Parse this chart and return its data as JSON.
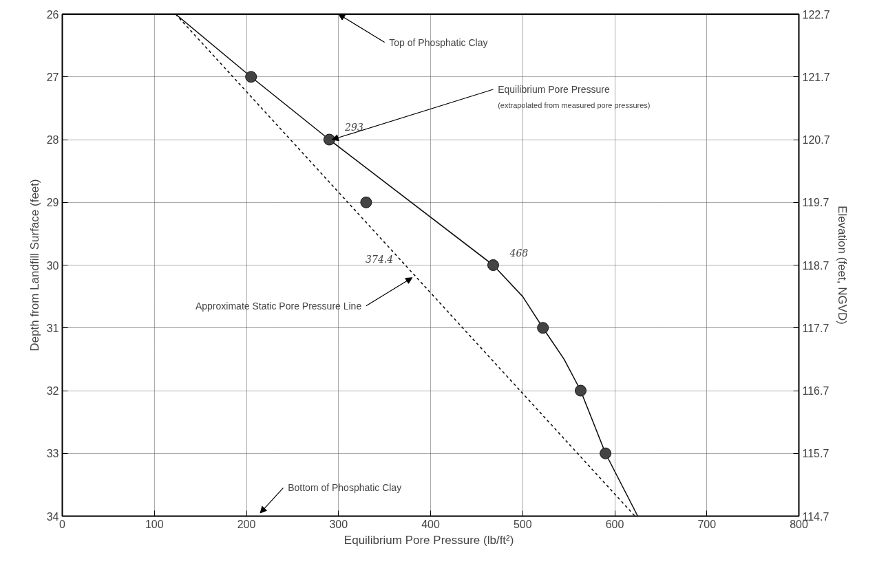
{
  "chart_data": {
    "type": "line",
    "xlabel": "Equilibrium Pore Pressure  (lb/ft²)",
    "ylabel": "Depth from Landfill Surface (feet)",
    "y2label": "Elevation (feet, NGVD)",
    "xlim": [
      0,
      800
    ],
    "xticks": [
      0,
      100,
      200,
      300,
      400,
      500,
      600,
      700,
      800
    ],
    "ylim": [
      34,
      26
    ],
    "yticks": [
      26,
      27,
      28,
      29,
      30,
      31,
      32,
      33,
      34
    ],
    "y2lim": [
      114.7,
      122.7
    ],
    "y2ticks": [
      114.7,
      115.7,
      116.7,
      117.7,
      118.7,
      119.7,
      120.7,
      121.7,
      122.7
    ],
    "grid": true,
    "series": [
      {
        "color": "#111111",
        "line_style": "solid",
        "x": [
          123,
          205,
          290,
          468,
          500,
          522,
          545,
          563,
          590,
          625
        ],
        "values": [
          26,
          27,
          28,
          30,
          30.5,
          31,
          31.5,
          32,
          33,
          34
        ]
      },
      {
        "color": "#111111",
        "line_style": "dashed",
        "x": [
          123,
          622
        ],
        "values": [
          26,
          34
        ]
      },
      {
        "type": "scatter",
        "color": "#444444",
        "marker": "circle",
        "x": [
          205,
          290,
          330,
          468,
          522,
          563,
          590
        ],
        "values": [
          27,
          28,
          29,
          30,
          31,
          32,
          33
        ]
      }
    ],
    "ref_lines": [
      {
        "axis": "y",
        "value": 26,
        "label": "Top of Phosphatic Clay",
        "color": "#111111"
      }
    ],
    "annotations": [
      {
        "text": "Equilibrium Pore Pressure\n(extrapolated from measured pore pressures)",
        "x": 293,
        "y": 28
      },
      {
        "text": "293",
        "x": 293,
        "y": 28
      },
      {
        "text": "468",
        "x": 468,
        "y": 30
      },
      {
        "text": "374.4",
        "x": 374.4,
        "y": 30
      },
      {
        "text": "Approximate Static Pore Pressure Line",
        "x": 380,
        "y": 30.2
      },
      "Bottom of Phosphatic Clay"
    ]
  }
}
